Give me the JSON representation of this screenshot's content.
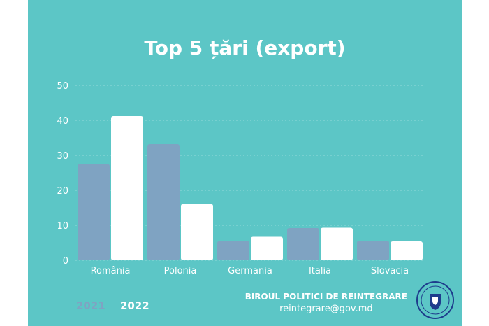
{
  "chart_data": {
    "type": "bar",
    "title": "Top 5 țări (export)",
    "categories": [
      "România",
      "Polonia",
      "Germania",
      "Italia",
      "Slovacia"
    ],
    "series": [
      {
        "name": "2021",
        "values": [
          27.5,
          33.2,
          5.5,
          9.2,
          5.6
        ]
      },
      {
        "name": "2022",
        "values": [
          41.2,
          16.1,
          6.7,
          9.3,
          5.4
        ]
      }
    ],
    "yticks": [
      "0",
      "10",
      "20",
      "30",
      "40",
      "50"
    ],
    "ylim": [
      0,
      50
    ],
    "grid": true,
    "legend_position": "bottom-left"
  },
  "colors": {
    "background": "#5cc6c6",
    "series_2021": "#7fa3c2",
    "series_2022": "#ffffff"
  },
  "footer": {
    "org_name": "BIROUL POLITICI DE REINTEGRARE",
    "email": "reintegrare@gov.md",
    "emblem": "government-of-moldova-seal"
  }
}
